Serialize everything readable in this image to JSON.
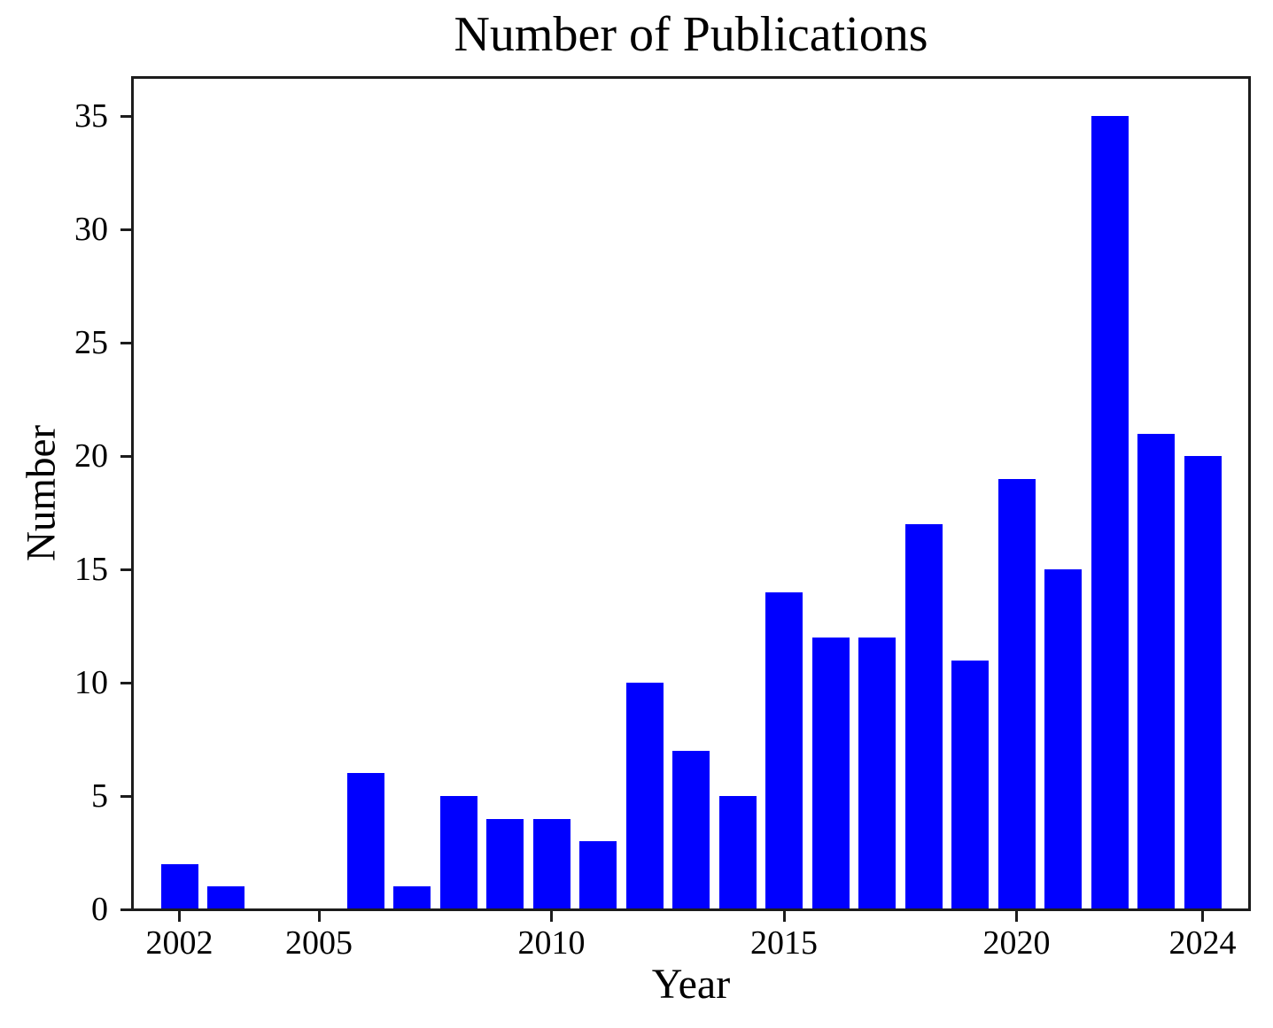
{
  "chart_data": {
    "type": "bar",
    "title": "Number of Publications",
    "xlabel": "Year",
    "ylabel": "Number",
    "categories": [
      2002,
      2003,
      2004,
      2005,
      2006,
      2007,
      2008,
      2009,
      2010,
      2011,
      2012,
      2013,
      2014,
      2015,
      2016,
      2017,
      2018,
      2019,
      2020,
      2021,
      2022,
      2023,
      2024
    ],
    "values": [
      2,
      1,
      0,
      0,
      6,
      1,
      5,
      4,
      4,
      3,
      10,
      7,
      5,
      14,
      12,
      12,
      17,
      11,
      19,
      15,
      35,
      21,
      20
    ],
    "xticks": [
      2002,
      2005,
      2010,
      2015,
      2020,
      2024
    ],
    "yticks": [
      0,
      5,
      10,
      15,
      20,
      25,
      30,
      35
    ],
    "xlim": [
      2001,
      2025
    ],
    "ylim": [
      0,
      36.7
    ],
    "bar_width_fraction": 0.8,
    "bar_color": "#0000ff",
    "axis_color": "#1c1c1c",
    "background": "#ffffff",
    "grid": false,
    "legend": null
  }
}
